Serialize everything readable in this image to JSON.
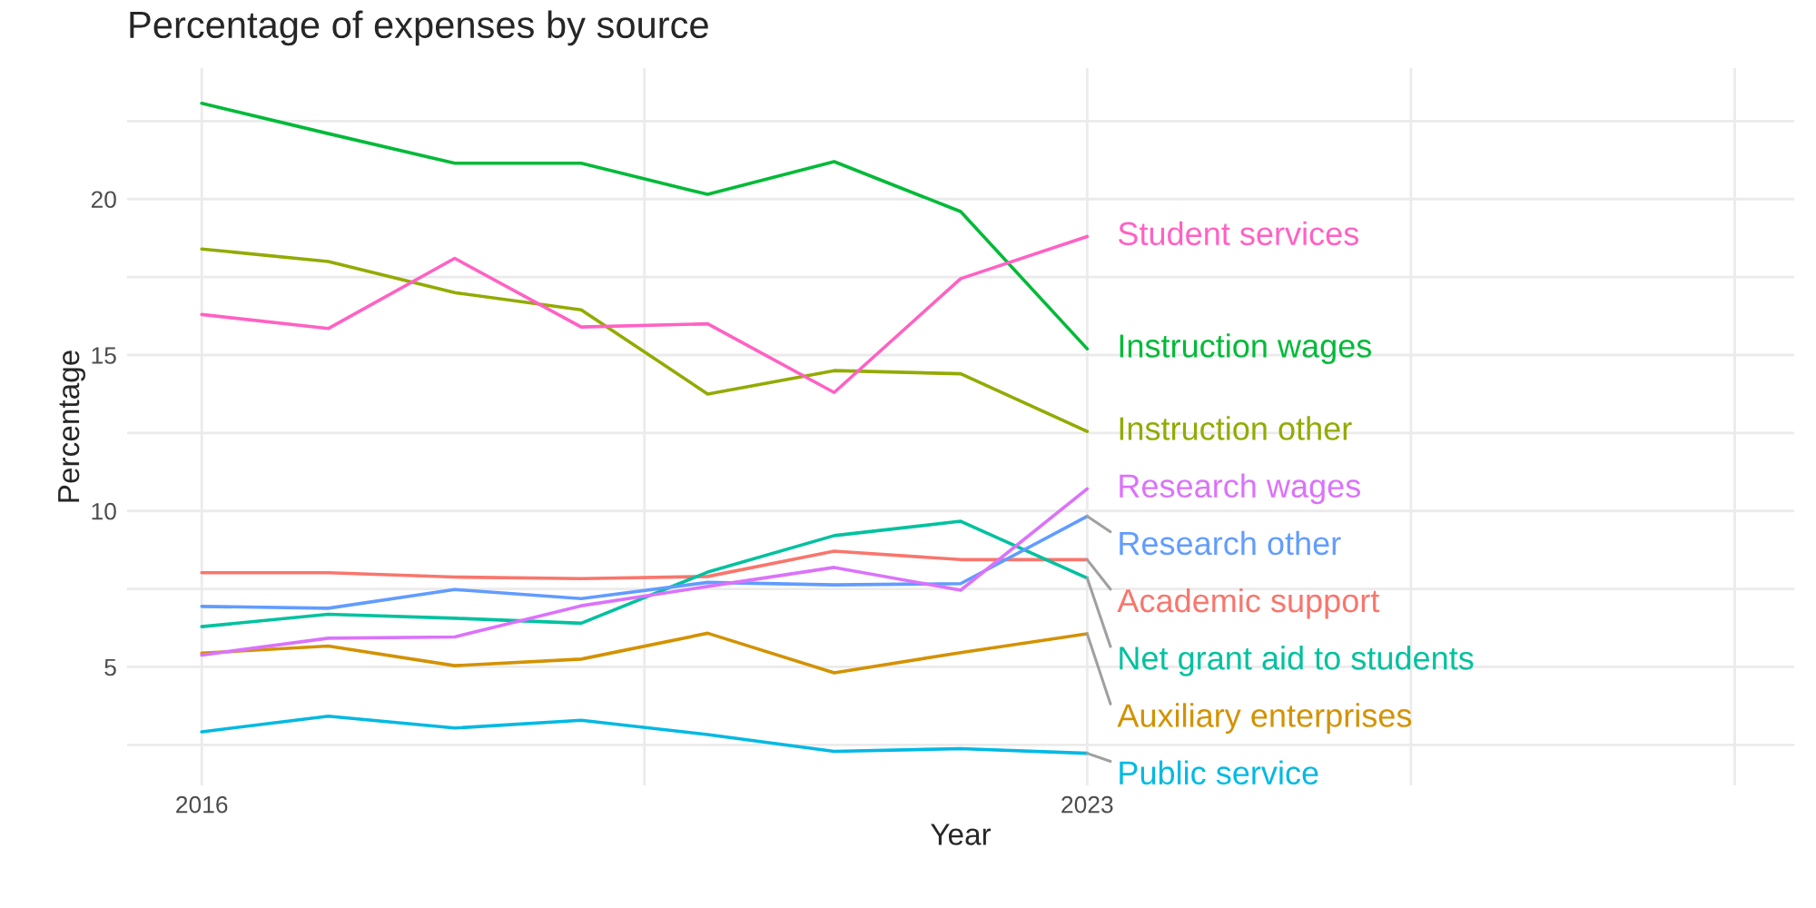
{
  "chart_data": {
    "type": "line",
    "title": "Percentage of expenses by source",
    "xlabel": "Year",
    "ylabel": "Percentage",
    "x": [
      2016,
      2017,
      2018,
      2019,
      2020,
      2021,
      2022,
      2023
    ],
    "xlim": [
      2015.41,
      2028.59
    ],
    "xticks": [
      2016,
      {
        "value": 2019.5,
        "label": null
      },
      2023,
      {
        "value": 2025.56,
        "label": null
      },
      {
        "value": 2028.12,
        "label": null
      }
    ],
    "ylim": [
      1.2,
      24.2
    ],
    "yticks": [
      {
        "value": 2.5,
        "label": null
      },
      5,
      {
        "value": 7.5,
        "label": null
      },
      10,
      {
        "value": 12.5,
        "label": null
      },
      15,
      {
        "value": 17.5,
        "label": null
      },
      20,
      {
        "value": 22.5,
        "label": null
      }
    ],
    "grid": true,
    "legend": false,
    "line_style": "solid",
    "marker": "none",
    "series": [
      {
        "name": "Academic support",
        "color": "#f8766d",
        "values": [
          8.02,
          8.02,
          7.88,
          7.83,
          7.9,
          8.71,
          8.44,
          8.44
        ]
      },
      {
        "name": "Auxiliary enterprises",
        "color": "#d39200",
        "values": [
          5.44,
          5.67,
          5.04,
          5.25,
          6.08,
          4.81,
          5.46,
          6.06
        ]
      },
      {
        "name": "Instruction other",
        "color": "#93aa00",
        "values": [
          18.4,
          18.0,
          17.0,
          16.45,
          13.75,
          14.5,
          14.4,
          12.55
        ]
      },
      {
        "name": "Instruction wages",
        "color": "#00ba38",
        "values": [
          23.07,
          22.1,
          21.15,
          21.15,
          20.15,
          21.2,
          19.6,
          15.2
        ]
      },
      {
        "name": "Net grant aid to students",
        "color": "#00c19f",
        "values": [
          6.29,
          6.69,
          6.56,
          6.4,
          8.04,
          9.21,
          9.67,
          7.85
        ]
      },
      {
        "name": "Public service",
        "color": "#00b9e3",
        "values": [
          2.92,
          3.42,
          3.04,
          3.29,
          2.83,
          2.29,
          2.38,
          2.23
        ]
      },
      {
        "name": "Research other",
        "color": "#619cff",
        "values": [
          6.94,
          6.88,
          7.48,
          7.19,
          7.71,
          7.63,
          7.67,
          9.83
        ]
      },
      {
        "name": "Research wages",
        "color": "#db72fb",
        "values": [
          5.38,
          5.92,
          5.96,
          6.96,
          7.58,
          8.19,
          7.46,
          10.71
        ]
      },
      {
        "name": "Student services",
        "color": "#ff61c3",
        "values": [
          16.3,
          15.85,
          18.1,
          15.9,
          16.0,
          13.8,
          17.45,
          18.8
        ]
      }
    ]
  }
}
